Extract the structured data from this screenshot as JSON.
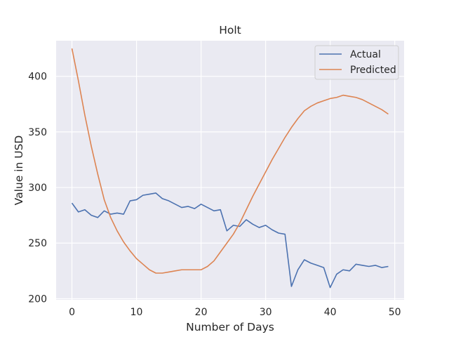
{
  "chart_data": {
    "type": "line",
    "title": "Holt",
    "xlabel": "Number of Days",
    "ylabel": "Value in USD",
    "xlim": [
      -2.45,
      51.45
    ],
    "ylim": [
      199,
      432
    ],
    "xticks": [
      0,
      10,
      20,
      30,
      40,
      50
    ],
    "yticks": [
      200,
      250,
      300,
      350,
      400
    ],
    "grid": true,
    "legend_position": "top-right",
    "series": [
      {
        "name": "Actual",
        "color": "#4c72b0",
        "x": [
          0,
          1,
          2,
          3,
          4,
          5,
          6,
          7,
          8,
          9,
          10,
          11,
          12,
          13,
          14,
          15,
          16,
          17,
          18,
          19,
          20,
          21,
          22,
          23,
          24,
          25,
          26,
          27,
          28,
          29,
          30,
          31,
          32,
          33,
          34,
          35,
          36,
          37,
          38,
          39,
          40,
          41,
          42,
          43,
          44,
          45,
          46,
          47,
          48,
          49
        ],
        "y": [
          286,
          278,
          280,
          275,
          273,
          279,
          276,
          277,
          276,
          288,
          289,
          293,
          294,
          295,
          290,
          288,
          285,
          282,
          283,
          281,
          285,
          282,
          279,
          280,
          261,
          266,
          265,
          271,
          267,
          264,
          266,
          262,
          259,
          258,
          211,
          226,
          235,
          232,
          230,
          228,
          210,
          222,
          226,
          225,
          231,
          230,
          229,
          230,
          228,
          229
        ]
      },
      {
        "name": "Predicted",
        "color": "#dd8452",
        "x": [
          0,
          1,
          2,
          3,
          4,
          5,
          6,
          7,
          8,
          9,
          10,
          11,
          12,
          13,
          14,
          15,
          16,
          17,
          18,
          19,
          20,
          21,
          22,
          23,
          24,
          25,
          26,
          27,
          28,
          29,
          30,
          31,
          32,
          33,
          34,
          35,
          36,
          37,
          38,
          39,
          40,
          41,
          42,
          43,
          44,
          45,
          46,
          47,
          48,
          49
        ],
        "y": [
          425,
          396,
          365,
          337,
          312,
          289,
          273,
          261,
          251,
          243,
          236,
          231,
          226,
          223,
          223,
          224,
          225,
          226,
          226,
          226,
          226,
          229,
          234,
          242,
          250,
          258,
          268,
          280,
          292,
          303,
          314,
          325,
          335,
          345,
          354,
          362,
          369,
          373,
          376,
          378,
          380,
          381,
          383,
          382,
          381,
          379,
          376,
          373,
          370,
          366
        ]
      }
    ]
  }
}
